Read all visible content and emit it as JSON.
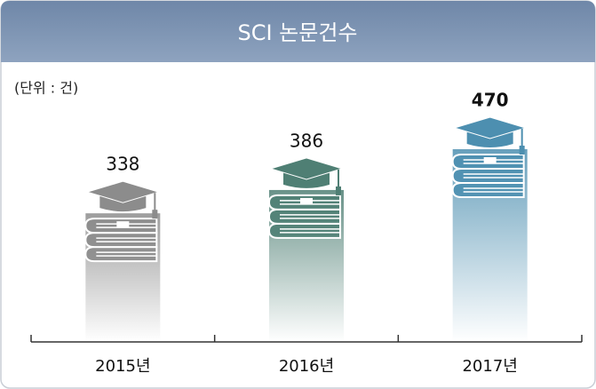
{
  "chart_data": {
    "type": "bar",
    "title": "SCI 논문건수",
    "unit_label": "(단위 : 건)",
    "categories": [
      "2015년",
      "2016년",
      "2017년"
    ],
    "values": [
      338,
      386,
      470
    ],
    "colors": [
      "#8c8c8c",
      "#4f7f74",
      "#4d8fb0"
    ]
  }
}
